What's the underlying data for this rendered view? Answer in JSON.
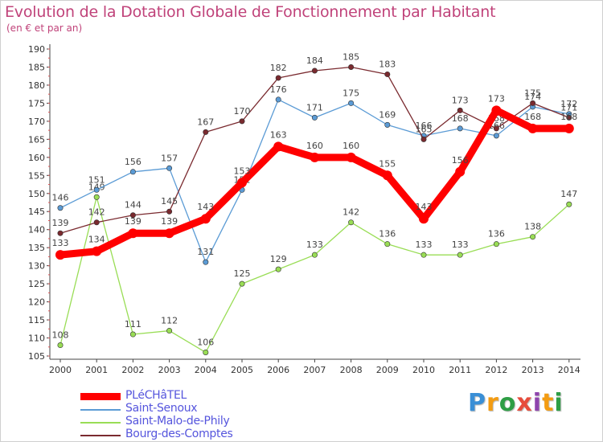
{
  "chart_data": {
    "type": "line",
    "title": "Evolution de la Dotation Globale de Fonctionnement par Habitant",
    "subtitle": "(en € et par an)",
    "xlabel": "",
    "ylabel": "",
    "x": [
      "2000",
      "2001",
      "2002",
      "2003",
      "2004",
      "2005",
      "2006",
      "2007",
      "2008",
      "2009",
      "2010",
      "2011",
      "2012",
      "2013",
      "2014"
    ],
    "ylim": [
      105,
      190
    ],
    "yticks": [
      "105",
      "110",
      "115",
      "120",
      "125",
      "130",
      "135",
      "140",
      "145",
      "150",
      "155",
      "160",
      "165",
      "170",
      "175",
      "180",
      "185",
      "190"
    ],
    "grid": false,
    "legend_position": "bottom-left",
    "series": [
      {
        "name": "Saint-Malo-de-Phily",
        "color": "#99dd55",
        "values": [
          108,
          149,
          111,
          112,
          106,
          125,
          129,
          133,
          142,
          136,
          133,
          133,
          136,
          138,
          147
        ],
        "labels": [
          "108",
          "149",
          "111",
          "112",
          "106",
          "125",
          "129",
          "133",
          "142",
          "136",
          "133",
          "133",
          "136",
          "138",
          "147"
        ]
      },
      {
        "name": "Saint-Senoux",
        "color": "#5b9bd5",
        "values": [
          146,
          151,
          156,
          157,
          131,
          151,
          176,
          171,
          175,
          169,
          166,
          168,
          166,
          174,
          172
        ],
        "labels": [
          "146",
          "151",
          "156",
          "157",
          "131",
          "151",
          "176",
          "171",
          "175",
          "169",
          "166",
          "168",
          "166",
          "174",
          "172"
        ]
      },
      {
        "name": "Bourg-des-Comptes",
        "color": "#7a2a2f",
        "values": [
          139,
          142,
          144,
          145,
          167,
          170,
          182,
          184,
          185,
          183,
          165,
          173,
          168,
          175,
          171
        ],
        "labels": [
          "139",
          "142",
          "144",
          "145",
          "167",
          "170",
          "182",
          "184",
          "185",
          "183",
          "165",
          "173",
          "168",
          "175",
          "171"
        ]
      },
      {
        "name": "PLéCHâTEL",
        "color": "#ff0000",
        "values": [
          133,
          134,
          139,
          139,
          143,
          153,
          163,
          160,
          160,
          155,
          143,
          156,
          173,
          168,
          168
        ],
        "labels": [
          "133",
          "134",
          "139",
          "139",
          "143",
          "153",
          "163",
          "160",
          "160",
          "155",
          "143",
          "156",
          "173",
          "168",
          "168"
        ]
      }
    ]
  },
  "legend": {
    "items": [
      {
        "label": "PLéCHâTEL",
        "color": "#ff0000",
        "thick": true
      },
      {
        "label": "Saint-Senoux",
        "color": "#5b9bd5",
        "thick": false
      },
      {
        "label": "Saint-Malo-de-Phily",
        "color": "#99dd55",
        "thick": false
      },
      {
        "label": "Bourg-des-Comptes",
        "color": "#7a2a2f",
        "thick": false
      }
    ]
  },
  "logo": {
    "letters": [
      "P",
      "r",
      "o",
      "x",
      "i",
      "t",
      "i"
    ],
    "colors": [
      "#3a8fd6",
      "#f39c12",
      "#2e9e45",
      "#e74c3c",
      "#8e44ad",
      "#f39c12",
      "#2e9e45"
    ]
  }
}
